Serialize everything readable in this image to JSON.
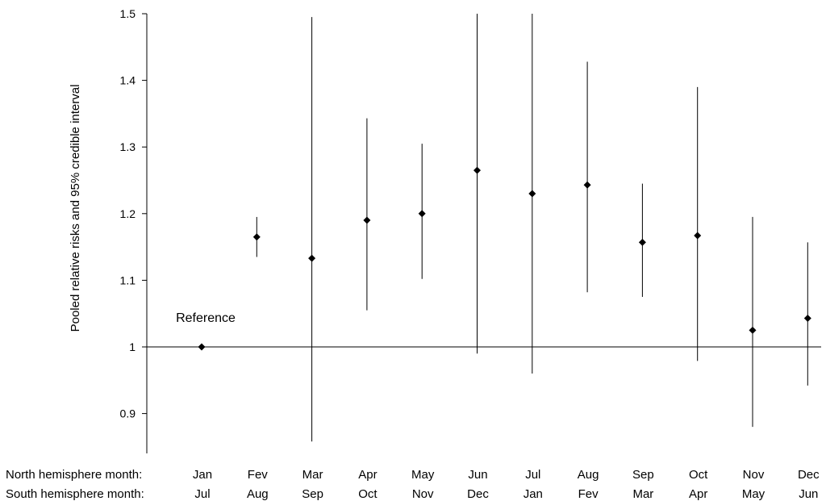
{
  "chart_data": {
    "type": "scatter",
    "ylabel": "Pooled relative risks  and 95% credible interval",
    "ylim": [
      0.85,
      1.5
    ],
    "yticks": [
      0.9,
      1,
      1.1,
      1.2,
      1.3,
      1.4,
      1.5
    ],
    "reference_line": 1,
    "row_labels": {
      "north": "North hemisphere month:",
      "south": "South hemisphere month:"
    },
    "north_months": [
      "Jan",
      "Fev",
      "Mar",
      "Apr",
      "May",
      "Jun",
      "Jul",
      "Aug",
      "Sep",
      "Oct",
      "Nov",
      "Dec"
    ],
    "south_months": [
      "Jul",
      "Aug",
      "Sep",
      "Oct",
      "Nov",
      "Dec",
      "Jan",
      "Fev",
      "Mar",
      "Apr",
      "May",
      "Jun"
    ],
    "points": [
      {
        "estimate": 1.0,
        "lower": null,
        "upper": null
      },
      {
        "estimate": 1.165,
        "lower": 1.135,
        "upper": 1.195
      },
      {
        "estimate": 1.133,
        "lower": 0.858,
        "upper": 1.495
      },
      {
        "estimate": 1.19,
        "lower": 1.055,
        "upper": 1.343
      },
      {
        "estimate": 1.2,
        "lower": 1.102,
        "upper": 1.305
      },
      {
        "estimate": 1.265,
        "lower": 0.99,
        "upper": 1.5
      },
      {
        "estimate": 1.23,
        "lower": 0.96,
        "upper": 1.5
      },
      {
        "estimate": 1.243,
        "lower": 1.082,
        "upper": 1.428
      },
      {
        "estimate": 1.157,
        "lower": 1.075,
        "upper": 1.245
      },
      {
        "estimate": 1.167,
        "lower": 0.979,
        "upper": 1.39
      },
      {
        "estimate": 1.025,
        "lower": 0.88,
        "upper": 1.195
      },
      {
        "estimate": 1.043,
        "lower": 0.942,
        "upper": 1.157
      }
    ],
    "annotations": [
      {
        "text": "Reference",
        "month_index": 0
      }
    ],
    "grid": false,
    "legend": "none"
  }
}
